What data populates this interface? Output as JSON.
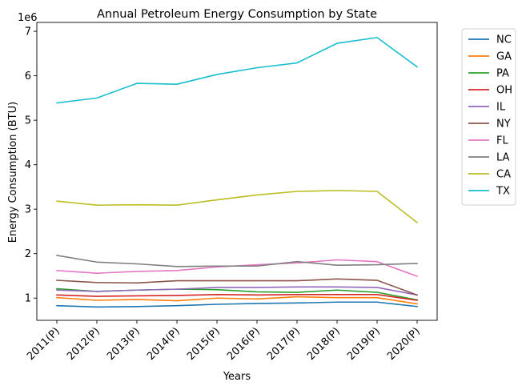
{
  "chart_data": {
    "type": "line",
    "title": "Annual Petroleum Energy Consumption by State",
    "xlabel": "Years",
    "ylabel": "Energy Consumption (BTU)",
    "y_offset_label": "1e6",
    "y_scale": 1000000,
    "ylim": [
      500000,
      7200000
    ],
    "yticks": [
      1000000,
      2000000,
      3000000,
      4000000,
      5000000,
      6000000,
      7000000
    ],
    "ytick_labels": [
      "1",
      "2",
      "3",
      "4",
      "5",
      "6",
      "7"
    ],
    "categories": [
      "2011(P)",
      "2012(P)",
      "2013(P)",
      "2014(P)",
      "2015(P)",
      "2016(P)",
      "2017(P)",
      "2018(P)",
      "2019(P)",
      "2020(P)"
    ],
    "legend_position": "outside-right-top",
    "grid": false,
    "series": [
      {
        "name": "NC",
        "color": "#1f77b4",
        "values": [
          830000,
          800000,
          810000,
          830000,
          860000,
          880000,
          890000,
          910000,
          910000,
          810000
        ]
      },
      {
        "name": "GA",
        "color": "#ff7f0e",
        "values": [
          1010000,
          950000,
          970000,
          940000,
          1000000,
          980000,
          1030000,
          1010000,
          1010000,
          870000
        ]
      },
      {
        "name": "PA",
        "color": "#2ca02c",
        "values": [
          1210000,
          1150000,
          1180000,
          1200000,
          1190000,
          1140000,
          1130000,
          1180000,
          1130000,
          960000
        ]
      },
      {
        "name": "OH",
        "color": "#d62728",
        "values": [
          1070000,
          1040000,
          1050000,
          1060000,
          1080000,
          1070000,
          1080000,
          1080000,
          1080000,
          950000
        ]
      },
      {
        "name": "IL",
        "color": "#9467bd",
        "values": [
          1180000,
          1150000,
          1180000,
          1200000,
          1240000,
          1240000,
          1250000,
          1250000,
          1240000,
          1070000
        ]
      },
      {
        "name": "NY",
        "color": "#8c564b",
        "values": [
          1400000,
          1350000,
          1340000,
          1390000,
          1390000,
          1390000,
          1390000,
          1430000,
          1400000,
          1070000
        ]
      },
      {
        "name": "FL",
        "color": "#e377c2",
        "values": [
          1620000,
          1560000,
          1600000,
          1620000,
          1700000,
          1750000,
          1790000,
          1860000,
          1820000,
          1490000
        ]
      },
      {
        "name": "LA",
        "color": "#7f7f7f",
        "values": [
          1960000,
          1810000,
          1770000,
          1710000,
          1720000,
          1720000,
          1820000,
          1740000,
          1750000,
          1780000
        ]
      },
      {
        "name": "CA",
        "color": "#bcbd22",
        "values": [
          3180000,
          3090000,
          3100000,
          3090000,
          3210000,
          3320000,
          3400000,
          3420000,
          3400000,
          2700000
        ]
      },
      {
        "name": "TX",
        "color": "#17becf",
        "values": [
          5390000,
          5500000,
          5830000,
          5810000,
          6030000,
          6180000,
          6290000,
          6730000,
          6860000,
          6200000
        ]
      }
    ]
  }
}
